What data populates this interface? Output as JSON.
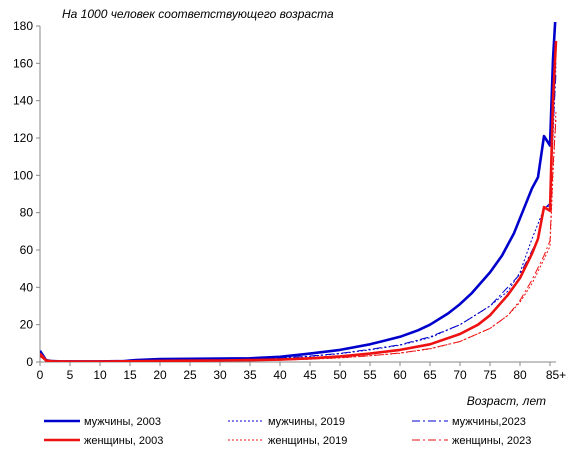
{
  "chart_data": {
    "type": "line",
    "annotation": "На 1000 человек соответствующего возраста",
    "xlabel": "Возраст, лет",
    "ylabel": "",
    "x_ticks": [
      "0",
      "5",
      "10",
      "15",
      "20",
      "25",
      "30",
      "35",
      "40",
      "45",
      "50",
      "55",
      "60",
      "65",
      "70",
      "75",
      "80",
      "85+"
    ],
    "y_ticks": [
      "0",
      "20",
      "40",
      "60",
      "80",
      "100",
      "120",
      "140",
      "160",
      "180"
    ],
    "xlim": [
      0,
      86
    ],
    "ylim": [
      0,
      180
    ],
    "legend_position": "bottom",
    "series": [
      {
        "name": "мужчины, 2003",
        "color": "#0000cc",
        "style": "solid-thick",
        "points": [
          [
            0,
            6
          ],
          [
            1,
            1
          ],
          [
            2,
            0.5
          ],
          [
            3,
            0.4
          ],
          [
            5,
            0.3
          ],
          [
            10,
            0.3
          ],
          [
            14,
            0.5
          ],
          [
            16,
            1
          ],
          [
            18,
            1.3
          ],
          [
            20,
            1.6
          ],
          [
            25,
            1.7
          ],
          [
            30,
            1.8
          ],
          [
            35,
            2
          ],
          [
            40,
            2.8
          ],
          [
            45,
            4.5
          ],
          [
            50,
            6.5
          ],
          [
            55,
            9.5
          ],
          [
            60,
            13.5
          ],
          [
            63,
            17
          ],
          [
            65,
            20
          ],
          [
            68,
            26
          ],
          [
            70,
            31
          ],
          [
            72,
            37
          ],
          [
            75,
            48
          ],
          [
            77,
            57
          ],
          [
            79,
            69
          ],
          [
            81,
            85
          ],
          [
            82,
            93
          ],
          [
            83,
            99
          ],
          [
            84,
            121
          ],
          [
            85,
            116
          ],
          [
            85.5,
            162
          ],
          [
            86,
            190
          ]
        ]
      },
      {
        "name": "мужчины, 2019",
        "color": "#0000cc",
        "style": "dotted",
        "points": [
          [
            0,
            4
          ],
          [
            1,
            0.6
          ],
          [
            2,
            0.3
          ],
          [
            5,
            0.2
          ],
          [
            10,
            0.2
          ],
          [
            15,
            0.4
          ],
          [
            20,
            0.8
          ],
          [
            25,
            1
          ],
          [
            30,
            1.2
          ],
          [
            35,
            1.5
          ],
          [
            40,
            2
          ],
          [
            45,
            3
          ],
          [
            50,
            4.5
          ],
          [
            55,
            6.5
          ],
          [
            60,
            9
          ],
          [
            65,
            13
          ],
          [
            70,
            20
          ],
          [
            75,
            30
          ],
          [
            78,
            38
          ],
          [
            80,
            48
          ],
          [
            82,
            66
          ],
          [
            84,
            82
          ],
          [
            85,
            84
          ],
          [
            85.5,
            120
          ],
          [
            86,
            160
          ]
        ]
      },
      {
        "name": "мужчины,2023",
        "color": "#0000cc",
        "style": "dashdot",
        "points": [
          [
            0,
            3.5
          ],
          [
            1,
            0.5
          ],
          [
            2,
            0.3
          ],
          [
            5,
            0.2
          ],
          [
            10,
            0.2
          ],
          [
            15,
            0.4
          ],
          [
            20,
            0.8
          ],
          [
            25,
            1
          ],
          [
            30,
            1.2
          ],
          [
            35,
            1.6
          ],
          [
            40,
            2.1
          ],
          [
            45,
            3.2
          ],
          [
            50,
            4.6
          ],
          [
            55,
            6.8
          ],
          [
            60,
            9.2
          ],
          [
            65,
            13.5
          ],
          [
            70,
            20
          ],
          [
            75,
            30
          ],
          [
            80,
            47
          ],
          [
            83,
            66
          ],
          [
            84,
            82
          ],
          [
            85,
            85
          ],
          [
            85.5,
            125
          ],
          [
            86,
            155
          ]
        ]
      },
      {
        "name": "женщины, 2003",
        "color": "#ee1111",
        "style": "solid-thick",
        "points": [
          [
            0,
            4.5
          ],
          [
            1,
            0.8
          ],
          [
            2,
            0.4
          ],
          [
            5,
            0.2
          ],
          [
            10,
            0.2
          ],
          [
            15,
            0.4
          ],
          [
            20,
            0.6
          ],
          [
            25,
            0.7
          ],
          [
            30,
            0.8
          ],
          [
            35,
            1
          ],
          [
            40,
            1.3
          ],
          [
            45,
            2
          ],
          [
            50,
            3
          ],
          [
            55,
            4.5
          ],
          [
            60,
            6.5
          ],
          [
            65,
            9.5
          ],
          [
            70,
            15
          ],
          [
            73,
            20
          ],
          [
            75,
            25
          ],
          [
            78,
            36
          ],
          [
            80,
            45
          ],
          [
            82,
            58
          ],
          [
            83,
            66
          ],
          [
            84,
            83
          ],
          [
            85,
            81
          ],
          [
            85.5,
            140
          ],
          [
            86,
            172
          ]
        ]
      },
      {
        "name": "женщины, 2019",
        "color": "#ee1111",
        "style": "dotted",
        "points": [
          [
            0,
            3
          ],
          [
            1,
            0.5
          ],
          [
            2,
            0.3
          ],
          [
            5,
            0.1
          ],
          [
            10,
            0.1
          ],
          [
            15,
            0.2
          ],
          [
            20,
            0.3
          ],
          [
            25,
            0.4
          ],
          [
            30,
            0.5
          ],
          [
            35,
            0.7
          ],
          [
            40,
            1
          ],
          [
            45,
            1.5
          ],
          [
            50,
            2.2
          ],
          [
            55,
            3.3
          ],
          [
            60,
            4.7
          ],
          [
            65,
            7
          ],
          [
            70,
            11
          ],
          [
            75,
            18
          ],
          [
            78,
            25
          ],
          [
            80,
            32
          ],
          [
            82,
            42
          ],
          [
            84,
            55
          ],
          [
            85,
            62
          ],
          [
            85.5,
            100
          ],
          [
            86,
            135
          ]
        ]
      },
      {
        "name": "женщины, 2023",
        "color": "#ee1111",
        "style": "dashdot",
        "points": [
          [
            0,
            3
          ],
          [
            1,
            0.5
          ],
          [
            2,
            0.3
          ],
          [
            5,
            0.1
          ],
          [
            10,
            0.1
          ],
          [
            15,
            0.2
          ],
          [
            20,
            0.3
          ],
          [
            25,
            0.4
          ],
          [
            30,
            0.5
          ],
          [
            35,
            0.7
          ],
          [
            40,
            1
          ],
          [
            45,
            1.5
          ],
          [
            50,
            2.3
          ],
          [
            55,
            3.4
          ],
          [
            60,
            4.8
          ],
          [
            65,
            7.2
          ],
          [
            70,
            11
          ],
          [
            75,
            18
          ],
          [
            78,
            25
          ],
          [
            80,
            33
          ],
          [
            82,
            44
          ],
          [
            84,
            57
          ],
          [
            85,
            65
          ],
          [
            85.5,
            105
          ],
          [
            86,
            130
          ]
        ]
      }
    ]
  }
}
